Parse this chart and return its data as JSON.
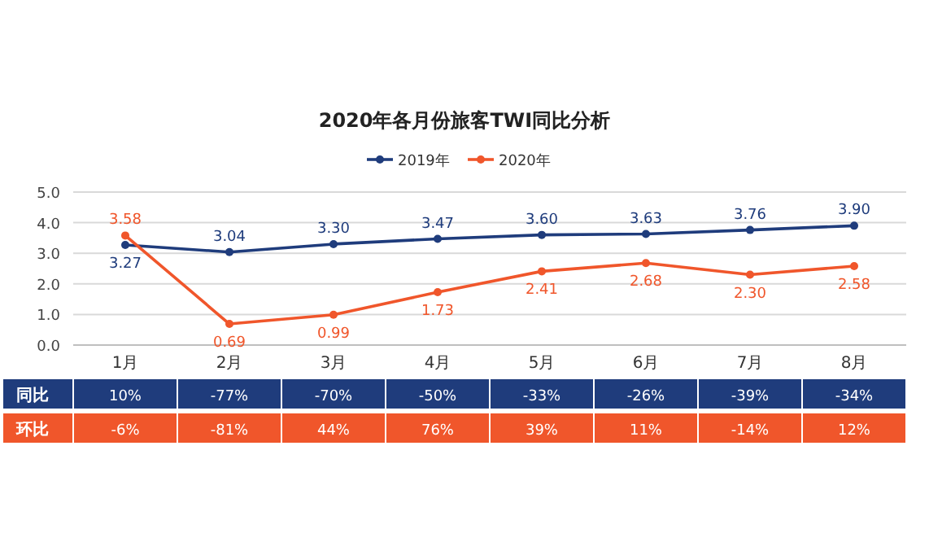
{
  "chart_data": {
    "type": "line",
    "title": "2020年各月份旅客TWI同比分析",
    "categories": [
      "1月",
      "2月",
      "3月",
      "4月",
      "5月",
      "6月",
      "7月",
      "8月"
    ],
    "series": [
      {
        "name": "2019年",
        "color": "#1f3c7c",
        "values": [
          3.27,
          3.04,
          3.3,
          3.47,
          3.6,
          3.63,
          3.76,
          3.9
        ],
        "value_labels": [
          "3.27",
          "3.04",
          "3.30",
          "3.47",
          "3.60",
          "3.63",
          "3.76",
          "3.90"
        ]
      },
      {
        "name": "2020年",
        "color": "#f0562b",
        "values": [
          3.58,
          0.69,
          0.99,
          1.73,
          2.41,
          2.68,
          2.3,
          2.58
        ],
        "value_labels": [
          "3.58",
          "0.69",
          "0.99",
          "1.73",
          "2.41",
          "2.68",
          "2.30",
          "2.58"
        ]
      }
    ],
    "ylim": [
      0,
      5
    ],
    "yticks": [
      {
        "value": 0,
        "label": "0.0"
      },
      {
        "value": 1,
        "label": "1.0"
      },
      {
        "value": 2,
        "label": "2.0"
      },
      {
        "value": 3,
        "label": "3.0"
      },
      {
        "value": 4,
        "label": "4.0"
      },
      {
        "value": 5,
        "label": "5.0"
      }
    ],
    "grid": "y",
    "legend": "top",
    "marker": "circle",
    "annotations": [
      "同比",
      "10%",
      "-77%",
      "-70%",
      "-50%",
      "-33%",
      "-26%",
      "-39%",
      "-34%",
      "环比",
      "-6%",
      "-81%",
      "44%",
      "76%",
      "39%",
      "11%",
      "-14%",
      "12%"
    ]
  }
}
